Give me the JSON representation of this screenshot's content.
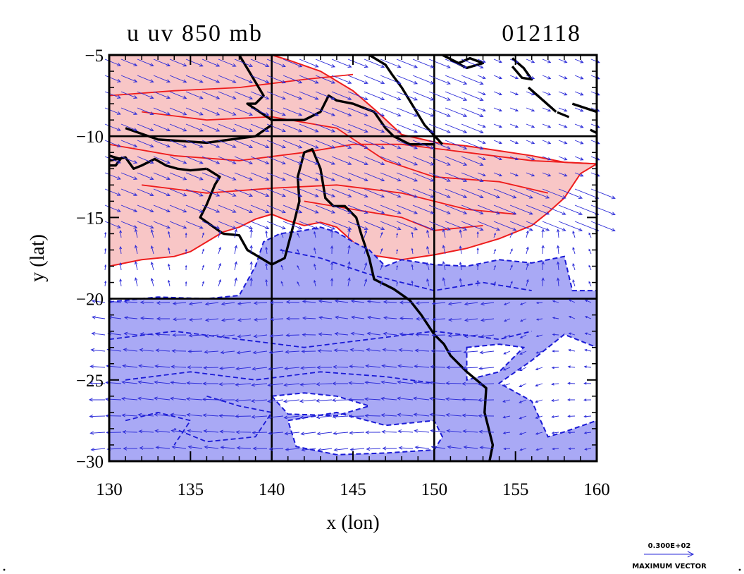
{
  "chart_data": {
    "type": "contour",
    "title_left": "u uv 850 mb",
    "title_right": "012118",
    "xlabel": "x (lon)",
    "ylabel": "y (lat)",
    "xlim": [
      130,
      160
    ],
    "ylim": [
      -30,
      -5
    ],
    "x_ticks": [
      130,
      135,
      140,
      145,
      150,
      155,
      160
    ],
    "x_tick_labels": [
      "130",
      "135",
      "140",
      "145",
      "150",
      "155",
      "160"
    ],
    "y_ticks": [
      -5,
      -10,
      -15,
      -20,
      -25,
      -30
    ],
    "y_tick_labels": [
      "−5",
      "−10",
      "−15",
      "−20",
      "−25",
      "−30"
    ],
    "grid_lines_x": [
      140,
      150
    ],
    "grid_lines_y": [
      -10,
      -20
    ],
    "series": [
      {
        "kind": "positive-region",
        "fill": "#f8c6c6",
        "line": "#ee1c1c",
        "boundary": [
          [
            130,
            -5
          ],
          [
            160,
            -5
          ],
          [
            160,
            -11.7
          ],
          [
            158,
            -11.6
          ],
          [
            156,
            -11.2
          ],
          [
            154,
            -10.9
          ],
          [
            152,
            -10.6
          ],
          [
            150.2,
            -10.4
          ],
          [
            148,
            -9.9
          ],
          [
            146.5,
            -8.5
          ],
          [
            145,
            -7.2
          ],
          [
            143,
            -6
          ],
          [
            141,
            -5.3
          ],
          [
            140,
            -5
          ],
          [
            145,
            -5
          ],
          [
            150,
            -5
          ],
          [
            160,
            -5
          ],
          [
            160,
            -11.7
          ],
          [
            159,
            -12.3
          ],
          [
            158,
            -13.8
          ],
          [
            157,
            -14.7
          ],
          [
            156,
            -15.5
          ],
          [
            154,
            -16.3
          ],
          [
            152,
            -16.9
          ],
          [
            150,
            -17.3
          ],
          [
            148,
            -17.6
          ],
          [
            146,
            -17.3
          ],
          [
            145,
            -16.5
          ],
          [
            144,
            -15.6
          ],
          [
            143,
            -15.3
          ],
          [
            142,
            -15.5
          ],
          [
            141,
            -15.2
          ],
          [
            140,
            -14.8
          ],
          [
            139,
            -15.1
          ],
          [
            138,
            -15.6
          ],
          [
            137,
            -15.9
          ],
          [
            136,
            -16.5
          ],
          [
            135,
            -17.1
          ],
          [
            134,
            -17.4
          ],
          [
            132,
            -17.6
          ],
          [
            130,
            -18
          ]
        ],
        "contour_lines": [
          [
            [
              130,
              -7.5
            ],
            [
              134,
              -7.2
            ],
            [
              138,
              -7
            ],
            [
              142,
              -6.5
            ],
            [
              145,
              -6.2
            ]
          ],
          [
            [
              130,
              -10.5
            ],
            [
              134,
              -11.2
            ],
            [
              138,
              -11.5
            ],
            [
              142,
              -11
            ],
            [
              145,
              -10.5
            ],
            [
              148,
              -10.5
            ],
            [
              152,
              -11
            ],
            [
              156,
              -11.5
            ],
            [
              160,
              -11.7
            ]
          ],
          [
            [
              132,
              -13
            ],
            [
              136,
              -13.5
            ],
            [
              140,
              -13.2
            ],
            [
              144,
              -13
            ],
            [
              148,
              -13.5
            ],
            [
              152,
              -14.5
            ],
            [
              155,
              -14.8
            ]
          ],
          [
            [
              142,
              -14
            ],
            [
              145,
              -14.5
            ],
            [
              148,
              -15
            ],
            [
              150,
              -15.8
            ],
            [
              153,
              -15.5
            ]
          ],
          [
            [
              132,
              -8.5
            ],
            [
              136,
              -9
            ],
            [
              140,
              -8.8
            ],
            [
              144,
              -9.5
            ],
            [
              147,
              -11.5
            ],
            [
              150,
              -12.5
            ],
            [
              154,
              -12.8
            ],
            [
              157,
              -13.5
            ]
          ]
        ]
      },
      {
        "kind": "negative-region",
        "fill": "#a9a9f5",
        "line": "#1a1ad6",
        "boundary": [
          [
            130,
            -20.2
          ],
          [
            133,
            -19.9
          ],
          [
            136,
            -20
          ],
          [
            138,
            -19.8
          ],
          [
            139,
            -18
          ],
          [
            139.5,
            -16.5
          ],
          [
            140.5,
            -16
          ],
          [
            142,
            -15.8
          ],
          [
            143,
            -15.6
          ],
          [
            144,
            -15.9
          ],
          [
            145,
            -16.5
          ],
          [
            146,
            -17
          ],
          [
            147,
            -18
          ],
          [
            148,
            -17.6
          ],
          [
            150,
            -17.9
          ],
          [
            152,
            -18
          ],
          [
            154,
            -17.6
          ],
          [
            156,
            -17.8
          ],
          [
            158,
            -17.4
          ],
          [
            158.5,
            -19.5
          ],
          [
            160,
            -19.5
          ],
          [
            160,
            -23
          ],
          [
            158,
            -22.2
          ],
          [
            156,
            -23.8
          ],
          [
            154,
            -25.2
          ],
          [
            156,
            -26.3
          ],
          [
            157,
            -28.5
          ],
          [
            158,
            -28.2
          ],
          [
            160,
            -27.5
          ],
          [
            160,
            -30
          ],
          [
            130,
            -30
          ]
        ],
        "holes": [
          [
            [
              141,
              -27.5
            ],
            [
              144,
              -27
            ],
            [
              147,
              -27.8
            ],
            [
              150,
              -27.5
            ],
            [
              150.5,
              -28.5
            ],
            [
              150,
              -29.3
            ],
            [
              147,
              -29.5
            ],
            [
              144,
              -29.6
            ],
            [
              141.5,
              -29.1
            ]
          ],
          [
            [
              140,
              -26
            ],
            [
              142,
              -25.8
            ],
            [
              144,
              -26
            ],
            [
              146,
              -26.6
            ],
            [
              144,
              -27.2
            ],
            [
              141,
              -27.1
            ]
          ],
          [
            [
              152,
              -23
            ],
            [
              154,
              -22.8
            ],
            [
              155.5,
              -23
            ],
            [
              154,
              -24.5
            ],
            [
              152,
              -25
            ]
          ]
        ],
        "contour_lines": [
          [
            [
              130,
              -22.5
            ],
            [
              134,
              -22
            ],
            [
              138,
              -22.5
            ],
            [
              142,
              -23
            ],
            [
              146,
              -22.5
            ],
            [
              150,
              -22
            ],
            [
              154,
              -22.5
            ],
            [
              156,
              -22
            ]
          ],
          [
            [
              131,
              -25
            ],
            [
              135,
              -24.5
            ],
            [
              139,
              -25
            ],
            [
              143,
              -24.5
            ],
            [
              147,
              -24.8
            ],
            [
              150,
              -25.2
            ]
          ],
          [
            [
              136,
              -26
            ],
            [
              138,
              -26.6
            ],
            [
              140,
              -27
            ],
            [
              139,
              -28.5
            ],
            [
              136,
              -28.8
            ],
            [
              134,
              -28
            ]
          ],
          [
            [
              140.5,
              -17
            ],
            [
              143,
              -17.5
            ],
            [
              146,
              -18.5
            ],
            [
              148,
              -19
            ],
            [
              150,
              -19.5
            ],
            [
              153,
              -19
            ],
            [
              156,
              -19.5
            ]
          ],
          [
            [
              131,
              -27.5
            ],
            [
              133,
              -27
            ],
            [
              135,
              -27.5
            ],
            [
              134,
              -29
            ]
          ]
        ]
      }
    ],
    "coastlines": [
      [
        [
          137,
          -16
        ],
        [
          138,
          -16.1
        ],
        [
          138.5,
          -17
        ],
        [
          140,
          -17.9
        ],
        [
          140.8,
          -17.5
        ],
        [
          141.2,
          -16
        ],
        [
          141.7,
          -14
        ],
        [
          141.6,
          -12.5
        ],
        [
          142,
          -11
        ],
        [
          142.5,
          -10.8
        ],
        [
          143,
          -12
        ],
        [
          143.3,
          -13.8
        ],
        [
          143.8,
          -14.3
        ],
        [
          144.5,
          -14.3
        ],
        [
          145.2,
          -15
        ],
        [
          145.5,
          -16
        ],
        [
          146,
          -17.5
        ],
        [
          146.3,
          -18.8
        ],
        [
          147.5,
          -19.4
        ],
        [
          148.5,
          -20.1
        ],
        [
          149.2,
          -21
        ],
        [
          150,
          -22.2
        ],
        [
          150.6,
          -22.8
        ],
        [
          151,
          -23.5
        ],
        [
          152,
          -24.5
        ],
        [
          153.2,
          -25.5
        ],
        [
          153.1,
          -27
        ],
        [
          153.6,
          -29
        ],
        [
          153.4,
          -30
        ]
      ],
      [
        [
          136,
          -12
        ],
        [
          136.8,
          -12.5
        ],
        [
          136.5,
          -13
        ],
        [
          136,
          -14.2
        ],
        [
          135.6,
          -15
        ],
        [
          137,
          -16
        ]
      ],
      [
        [
          130,
          -11.5
        ],
        [
          131,
          -11.3
        ],
        [
          131.5,
          -12
        ],
        [
          132,
          -11.8
        ],
        [
          132.8,
          -11.4
        ],
        [
          133.5,
          -11.8
        ],
        [
          134.2,
          -12
        ],
        [
          135,
          -12.1
        ],
        [
          136,
          -12
        ]
      ],
      [
        [
          130,
          -11.2
        ],
        [
          130.7,
          -11.4
        ],
        [
          130.4,
          -11.8
        ],
        [
          130,
          -11.8
        ]
      ],
      [
        [
          131,
          -9.5
        ],
        [
          133,
          -10.2
        ],
        [
          136,
          -10.4
        ],
        [
          139,
          -10
        ],
        [
          140,
          -9.3
        ]
      ],
      [
        [
          138,
          -5
        ],
        [
          138.6,
          -6
        ],
        [
          139.5,
          -7.5
        ],
        [
          139,
          -8
        ],
        [
          138.5,
          -8
        ],
        [
          140,
          -9
        ],
        [
          142,
          -9
        ],
        [
          143,
          -8.5
        ],
        [
          143.5,
          -7.5
        ],
        [
          144,
          -7.8
        ],
        [
          145,
          -8
        ],
        [
          146.3,
          -8.5
        ],
        [
          147,
          -9.5
        ],
        [
          147.5,
          -10
        ],
        [
          148.5,
          -10.5
        ],
        [
          150,
          -10.5
        ]
      ],
      [
        [
          146,
          -5
        ],
        [
          147,
          -5.6
        ],
        [
          147.4,
          -6.2
        ],
        [
          148,
          -7
        ],
        [
          149.4,
          -9.3
        ],
        [
          150.5,
          -10.5
        ]
      ],
      [
        [
          150.5,
          -5
        ],
        [
          151.5,
          -5.5
        ],
        [
          152.2,
          -5.2
        ],
        [
          153,
          -5.5
        ],
        [
          152,
          -5.8
        ],
        [
          151,
          -5.3
        ]
      ],
      [
        [
          154.8,
          -5.2
        ],
        [
          155.5,
          -5.8
        ],
        [
          156,
          -6.5
        ],
        [
          155.4,
          -6.4
        ],
        [
          154.8,
          -5.7
        ]
      ],
      [
        [
          155.8,
          -7
        ],
        [
          157.5,
          -8.5
        ]
      ],
      [
        [
          158.5,
          -8
        ],
        [
          160,
          -8.5
        ]
      ],
      [
        [
          160,
          -9.8
        ],
        [
          159.6,
          -9.6
        ]
      ]
    ],
    "wind_vectors": "uv 850 mb"
  },
  "reference_vector": {
    "value_label": "0.300E+02",
    "caption": "MAXIMUM VECTOR"
  },
  "colors": {
    "positive_fill": "#f8c6c6",
    "positive_line": "#ee1c1c",
    "negative_fill": "#a9a9f5",
    "negative_line": "#1a1ad6",
    "vector": "#2a2ad8",
    "coast": "#000000"
  }
}
